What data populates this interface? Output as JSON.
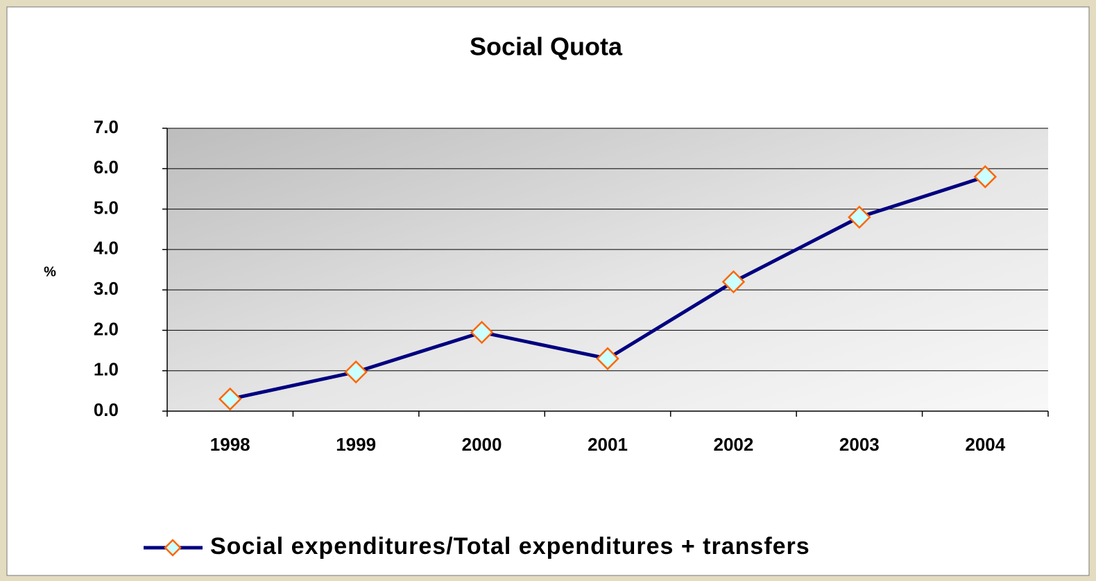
{
  "chart_data": {
    "type": "line",
    "title": "Social Quota",
    "ylabel": "%",
    "categories": [
      "1998",
      "1999",
      "2000",
      "2001",
      "2002",
      "2003",
      "2004"
    ],
    "series": [
      {
        "name": "Social expenditures/Total expenditures + transfers",
        "color": "#000080",
        "marker_edge": "#ff6600",
        "marker_fill": "#ccffff",
        "values": [
          0.3,
          0.97,
          1.95,
          1.3,
          3.2,
          4.8,
          5.8
        ]
      }
    ],
    "ylim": [
      0,
      7
    ],
    "yticks": [
      {
        "value": 0,
        "label": "0.0"
      },
      {
        "value": 1,
        "label": "1.0"
      },
      {
        "value": 2,
        "label": "2.0"
      },
      {
        "value": 3,
        "label": "3.0"
      },
      {
        "value": 4,
        "label": "4.0"
      },
      {
        "value": 5,
        "label": "5.0"
      },
      {
        "value": 6,
        "label": "6.0"
      },
      {
        "value": 7,
        "label": "7.0"
      }
    ],
    "grid": true,
    "legend": "bottom"
  }
}
